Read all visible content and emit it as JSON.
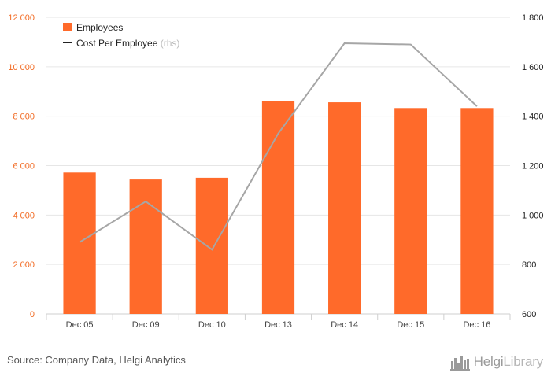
{
  "chart_data": {
    "type": "bar",
    "categories": [
      "Dec 05",
      "Dec 09",
      "Dec 10",
      "Dec 13",
      "Dec 14",
      "Dec 15",
      "Dec 16"
    ],
    "series": [
      {
        "name": "Employees",
        "type": "bar",
        "axis": "left",
        "color": "#ff6a2a",
        "values": [
          5720,
          5440,
          5510,
          8620,
          8560,
          8330,
          8330
        ]
      },
      {
        "name": "Cost Per Employee",
        "type": "line",
        "axis": "right",
        "color": "#a6a6a6",
        "values": [
          890,
          1055,
          860,
          1330,
          1695,
          1690,
          1440
        ]
      }
    ],
    "y_left": {
      "min": 0,
      "max": 12000,
      "ticks": [
        0,
        2000,
        4000,
        6000,
        8000,
        10000,
        12000
      ],
      "tick_labels": [
        "0",
        "2 000",
        "4 000",
        "6 000",
        "8 000",
        "10 000",
        "12 000"
      ]
    },
    "y_right": {
      "min": 600,
      "max": 1800,
      "ticks": [
        600,
        800,
        1000,
        1200,
        1400,
        1600,
        1800
      ],
      "tick_labels": [
        "600",
        "800",
        "1 000",
        "1 200",
        "1 400",
        "1 600",
        "1 800"
      ]
    },
    "legend": {
      "position": "top-left",
      "items": [
        {
          "label": "Employees",
          "note": "",
          "symbol": "square"
        },
        {
          "label": "Cost Per Employee",
          "note": "(rhs)",
          "symbol": "line"
        }
      ]
    },
    "grid": true
  },
  "footer": {
    "source": "Source: Company Data, Helgi Analytics",
    "logo_main": "Helgi",
    "logo_light": "Library",
    "logo_icon": "helgi-library-logo-icon"
  }
}
